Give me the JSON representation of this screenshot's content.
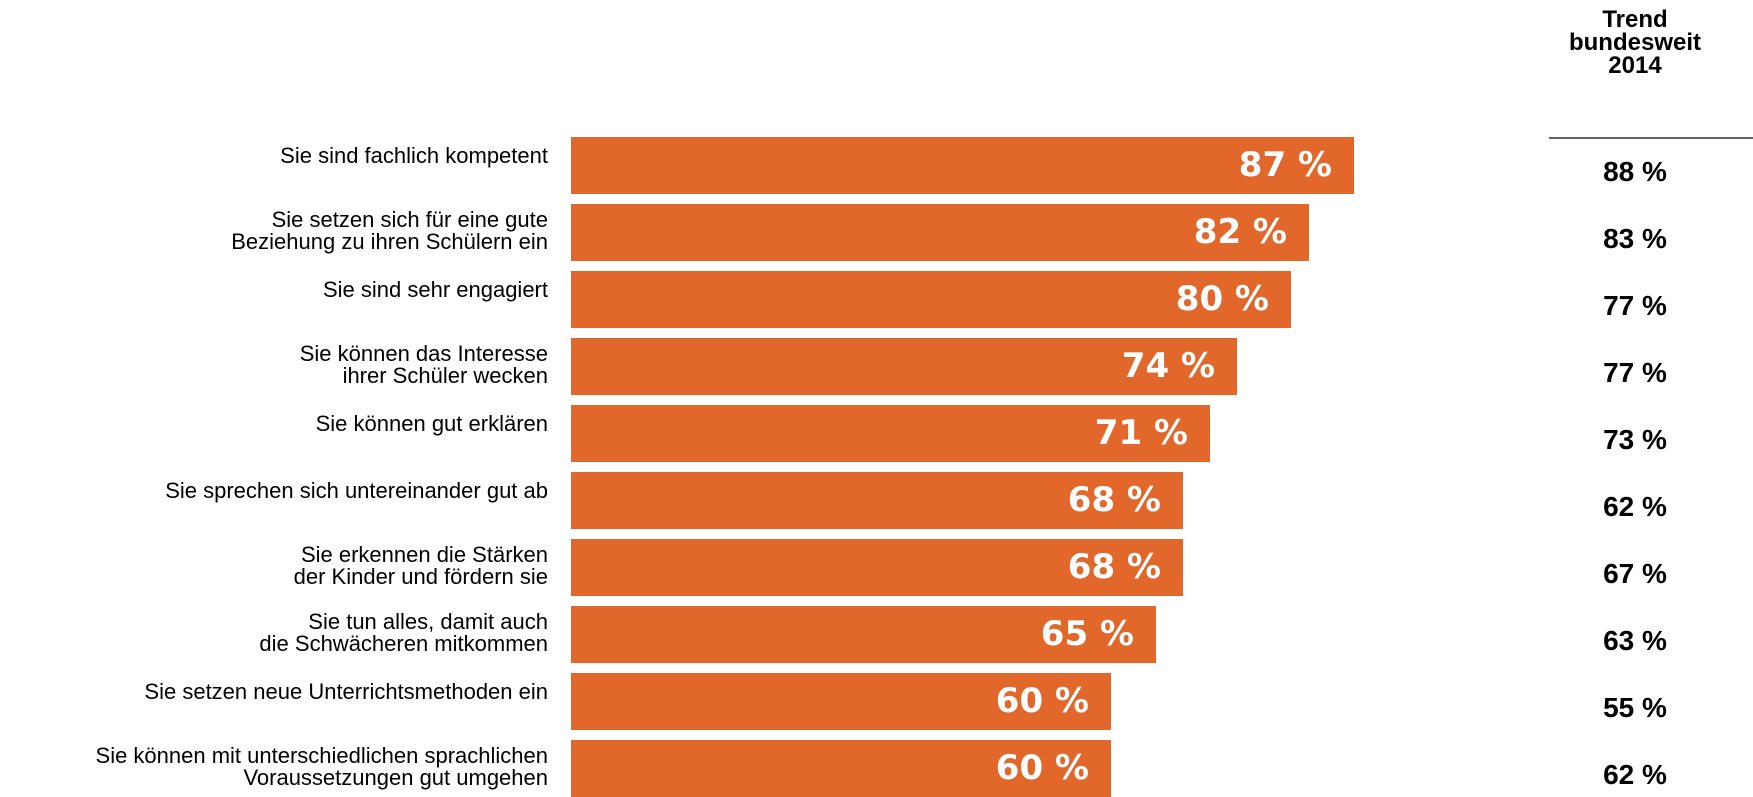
{
  "chart_data": {
    "type": "bar",
    "orientation": "horizontal",
    "categories": [
      [
        "Sie sind fachlich kompetent"
      ],
      [
        "Sie setzen sich für eine gute",
        "Beziehung zu ihren Schülern ein"
      ],
      [
        "Sie sind sehr engagiert"
      ],
      [
        "Sie können das Interesse",
        "ihrer Schüler wecken"
      ],
      [
        "Sie können gut erklären"
      ],
      [
        "Sie sprechen sich untereinander gut ab"
      ],
      [
        "Sie erkennen die Stärken",
        "der Kinder und fördern sie"
      ],
      [
        "Sie tun alles, damit auch",
        "die Schwächeren mitkommen"
      ],
      [
        "Sie setzen neue Unterrichtsmethoden ein"
      ],
      [
        "Sie können mit unterschiedlichen sprachlichen",
        "Voraussetzungen gut umgehen"
      ]
    ],
    "values": [
      87,
      82,
      80,
      74,
      71,
      68,
      68,
      65,
      60,
      60
    ],
    "value_labels": [
      "87 %",
      "82 %",
      "80 %",
      "74 %",
      "71 %",
      "68 %",
      "68 %",
      "65 %",
      "60 %",
      "60 %"
    ],
    "bar_color": "#E2672B",
    "trend": {
      "header": [
        "Trend",
        "bundesweit",
        "2014"
      ],
      "values": [
        "88 %",
        "83 %",
        "77 %",
        "77 %",
        "73 %",
        "62 %",
        "67 %",
        "63 %",
        "55 %",
        "62 %"
      ]
    }
  }
}
